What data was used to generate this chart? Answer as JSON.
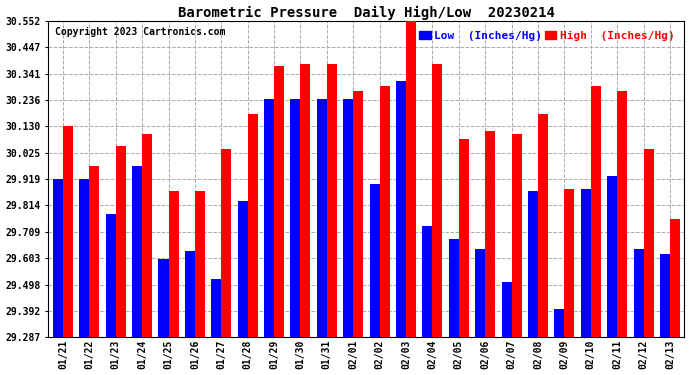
{
  "title": "Barometric Pressure  Daily High/Low  20230214",
  "copyright": "Copyright 2023 Cartronics.com",
  "legend_low": "Low  (Inches/Hg)",
  "legend_high": "High  (Inches/Hg)",
  "dates": [
    "01/21",
    "01/22",
    "01/23",
    "01/24",
    "01/25",
    "01/26",
    "01/27",
    "01/28",
    "01/29",
    "01/30",
    "01/31",
    "02/01",
    "02/02",
    "02/03",
    "02/04",
    "02/05",
    "02/06",
    "02/07",
    "02/08",
    "02/09",
    "02/10",
    "02/11",
    "02/12",
    "02/13"
  ],
  "high_values": [
    30.13,
    29.97,
    30.05,
    30.1,
    29.87,
    29.87,
    30.04,
    30.18,
    30.37,
    30.38,
    30.38,
    30.27,
    30.29,
    30.55,
    30.38,
    30.08,
    30.11,
    30.1,
    30.18,
    29.88,
    30.29,
    30.27,
    30.04,
    29.76
  ],
  "low_values": [
    29.92,
    29.92,
    29.78,
    29.97,
    29.6,
    29.63,
    29.52,
    29.83,
    30.24,
    30.24,
    30.24,
    30.24,
    29.9,
    30.31,
    29.73,
    29.68,
    29.64,
    29.51,
    29.87,
    29.4,
    29.88,
    29.93,
    29.64,
    29.62
  ],
  "ylim_min": 29.287,
  "ylim_max": 30.552,
  "yticks": [
    29.287,
    29.392,
    29.498,
    29.603,
    29.709,
    29.814,
    29.919,
    30.025,
    30.13,
    30.236,
    30.341,
    30.447,
    30.552
  ],
  "ytick_labels": [
    "29.287",
    "29.392",
    "29.498",
    "29.603",
    "29.709",
    "29.814",
    "29.919",
    "30.025",
    "30.130",
    "30.236",
    "30.341",
    "30.447",
    "30.552"
  ],
  "bar_width": 0.38,
  "low_color": "#0000FF",
  "high_color": "#FF0000",
  "bg_color": "#FFFFFF",
  "grid_color": "#AAAAAA",
  "title_fontsize": 10,
  "tick_fontsize": 7,
  "copyright_fontsize": 7,
  "legend_fontsize": 8
}
